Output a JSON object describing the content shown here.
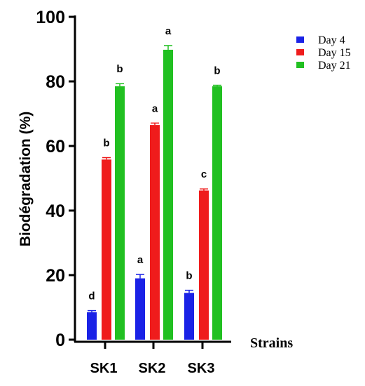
{
  "chart_data": {
    "type": "bar",
    "ylabel": "Biodégradation (%)",
    "xlabel": "Strains",
    "ylim": [
      0,
      100
    ],
    "yticks": [
      "0",
      "20",
      "40",
      "60",
      "80",
      "100"
    ],
    "categories": [
      "SK1",
      "SK2",
      "SK3"
    ],
    "series": [
      {
        "name": "Day 4",
        "color": "#1a22e6",
        "values": [
          8.5,
          19.0,
          14.5
        ],
        "errors": [
          0.5,
          1.2,
          0.8
        ],
        "labels": [
          "d",
          "a",
          "b"
        ]
      },
      {
        "name": "Day 15",
        "color": "#ef1c1c",
        "values": [
          55.8,
          66.5,
          46.2
        ],
        "errors": [
          0.6,
          0.6,
          0.5
        ],
        "labels": [
          "b",
          "a",
          "c"
        ]
      },
      {
        "name": "Day 21",
        "color": "#21c021",
        "values": [
          78.5,
          89.8,
          78.5
        ],
        "errors": [
          0.8,
          1.3,
          0.3
        ],
        "labels": [
          "b",
          "a",
          "b"
        ]
      }
    ],
    "legend_position": "top-right",
    "grid": false
  }
}
